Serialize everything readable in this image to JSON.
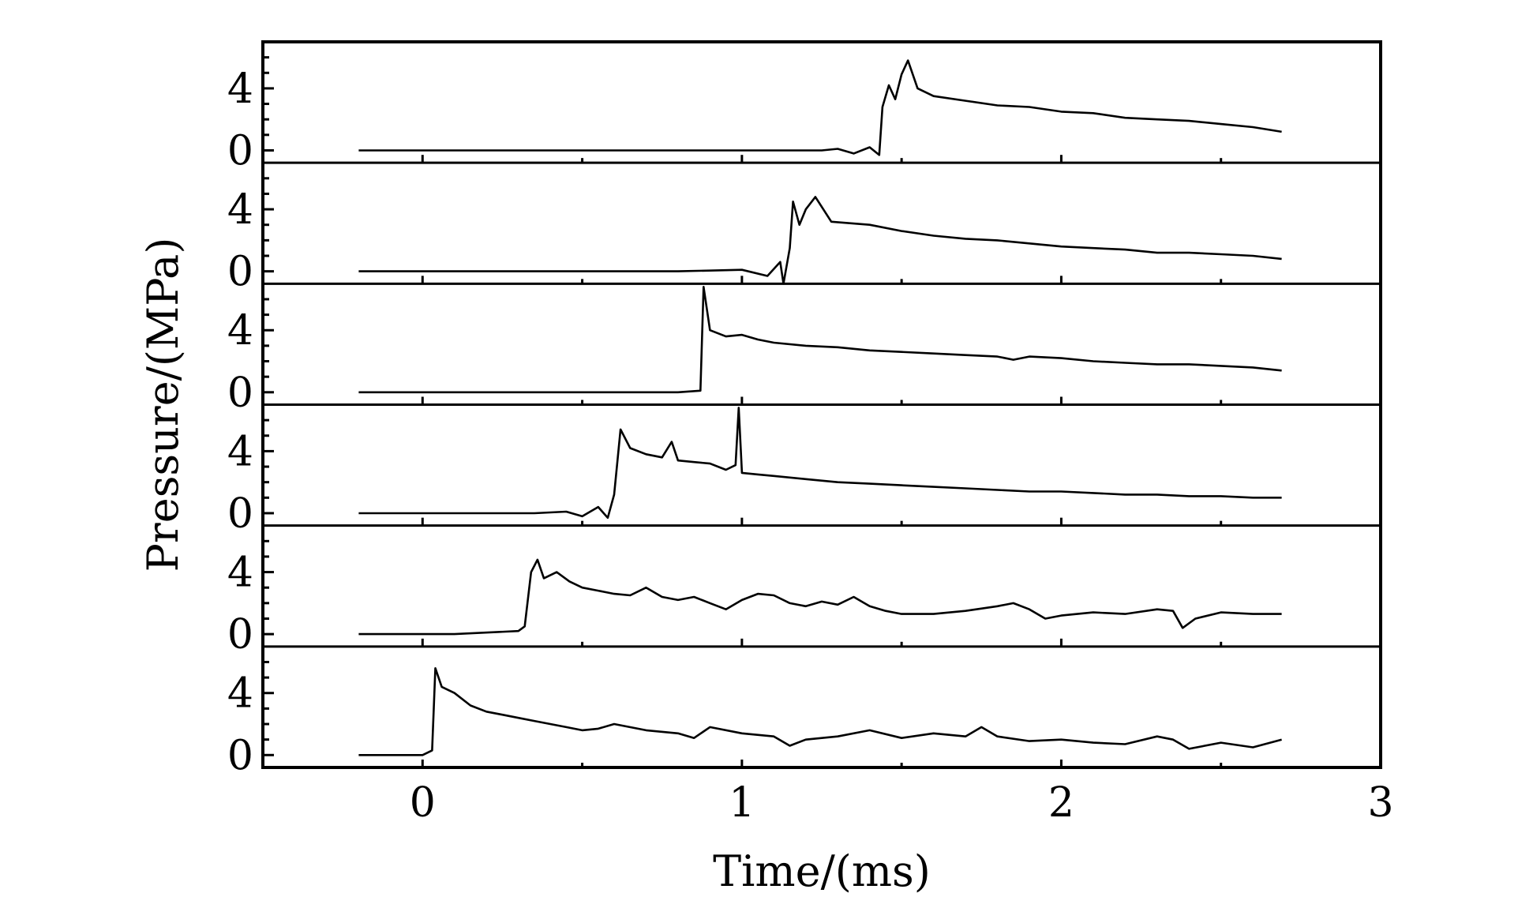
{
  "chart_data": {
    "type": "line",
    "xlabel": "Time/(ms)",
    "ylabel": "Pressure/(MPa)",
    "xlim": [
      -0.5,
      3
    ],
    "x_ticks": [
      "0",
      "1",
      "2",
      "3"
    ],
    "x_tick_values": [
      0,
      1,
      2,
      3
    ],
    "panel_ylim": [
      -0.8,
      7
    ],
    "panel_y_ticks": [
      "0",
      "4"
    ],
    "panel_y_tick_values": [
      0,
      4
    ],
    "panels_top_to_bottom": [
      {
        "points": [
          [
            -0.2,
            0
          ],
          [
            1.25,
            0
          ],
          [
            1.3,
            0.1
          ],
          [
            1.35,
            -0.2
          ],
          [
            1.4,
            0.2
          ],
          [
            1.43,
            -0.3
          ],
          [
            1.44,
            2.8
          ],
          [
            1.46,
            4.2
          ],
          [
            1.48,
            3.3
          ],
          [
            1.5,
            4.9
          ],
          [
            1.52,
            5.8
          ],
          [
            1.55,
            4.0
          ],
          [
            1.6,
            3.5
          ],
          [
            1.7,
            3.2
          ],
          [
            1.8,
            2.9
          ],
          [
            1.9,
            2.8
          ],
          [
            2.0,
            2.5
          ],
          [
            2.1,
            2.4
          ],
          [
            2.2,
            2.1
          ],
          [
            2.3,
            2.0
          ],
          [
            2.4,
            1.9
          ],
          [
            2.5,
            1.7
          ],
          [
            2.6,
            1.5
          ],
          [
            2.69,
            1.2
          ]
        ]
      },
      {
        "points": [
          [
            -0.2,
            0
          ],
          [
            0.8,
            0
          ],
          [
            1.0,
            0.1
          ],
          [
            1.08,
            -0.3
          ],
          [
            1.12,
            0.6
          ],
          [
            1.13,
            -0.8
          ],
          [
            1.15,
            1.5
          ],
          [
            1.16,
            4.5
          ],
          [
            1.18,
            3.0
          ],
          [
            1.2,
            4.0
          ],
          [
            1.23,
            4.8
          ],
          [
            1.28,
            3.2
          ],
          [
            1.4,
            3.0
          ],
          [
            1.5,
            2.6
          ],
          [
            1.6,
            2.3
          ],
          [
            1.7,
            2.1
          ],
          [
            1.8,
            2.0
          ],
          [
            1.9,
            1.8
          ],
          [
            2.0,
            1.6
          ],
          [
            2.1,
            1.5
          ],
          [
            2.2,
            1.4
          ],
          [
            2.3,
            1.2
          ],
          [
            2.4,
            1.2
          ],
          [
            2.5,
            1.1
          ],
          [
            2.6,
            1.0
          ],
          [
            2.69,
            0.8
          ]
        ]
      },
      {
        "points": [
          [
            -0.2,
            0
          ],
          [
            0.8,
            0
          ],
          [
            0.87,
            0.1
          ],
          [
            0.88,
            6.8
          ],
          [
            0.9,
            4.0
          ],
          [
            0.95,
            3.6
          ],
          [
            1.0,
            3.7
          ],
          [
            1.05,
            3.4
          ],
          [
            1.1,
            3.2
          ],
          [
            1.2,
            3.0
          ],
          [
            1.3,
            2.9
          ],
          [
            1.4,
            2.7
          ],
          [
            1.5,
            2.6
          ],
          [
            1.6,
            2.5
          ],
          [
            1.7,
            2.4
          ],
          [
            1.8,
            2.3
          ],
          [
            1.85,
            2.1
          ],
          [
            1.9,
            2.3
          ],
          [
            2.0,
            2.2
          ],
          [
            2.1,
            2.0
          ],
          [
            2.2,
            1.9
          ],
          [
            2.3,
            1.8
          ],
          [
            2.4,
            1.8
          ],
          [
            2.5,
            1.7
          ],
          [
            2.6,
            1.6
          ],
          [
            2.69,
            1.4
          ]
        ]
      },
      {
        "points": [
          [
            -0.2,
            0
          ],
          [
            0.35,
            0
          ],
          [
            0.45,
            0.1
          ],
          [
            0.5,
            -0.2
          ],
          [
            0.55,
            0.4
          ],
          [
            0.58,
            -0.3
          ],
          [
            0.6,
            1.2
          ],
          [
            0.62,
            5.4
          ],
          [
            0.65,
            4.2
          ],
          [
            0.7,
            3.8
          ],
          [
            0.75,
            3.6
          ],
          [
            0.78,
            4.6
          ],
          [
            0.8,
            3.4
          ],
          [
            0.85,
            3.3
          ],
          [
            0.9,
            3.2
          ],
          [
            0.95,
            2.8
          ],
          [
            0.98,
            3.1
          ],
          [
            0.99,
            6.8
          ],
          [
            1.0,
            2.6
          ],
          [
            1.05,
            2.5
          ],
          [
            1.1,
            2.4
          ],
          [
            1.2,
            2.2
          ],
          [
            1.3,
            2.0
          ],
          [
            1.4,
            1.9
          ],
          [
            1.5,
            1.8
          ],
          [
            1.6,
            1.7
          ],
          [
            1.7,
            1.6
          ],
          [
            1.8,
            1.5
          ],
          [
            1.9,
            1.4
          ],
          [
            2.0,
            1.4
          ],
          [
            2.1,
            1.3
          ],
          [
            2.2,
            1.2
          ],
          [
            2.3,
            1.2
          ],
          [
            2.4,
            1.1
          ],
          [
            2.5,
            1.1
          ],
          [
            2.6,
            1.0
          ],
          [
            2.69,
            1.0
          ]
        ]
      },
      {
        "points": [
          [
            -0.2,
            0
          ],
          [
            0.1,
            0
          ],
          [
            0.3,
            0.2
          ],
          [
            0.32,
            0.5
          ],
          [
            0.34,
            4.0
          ],
          [
            0.36,
            4.8
          ],
          [
            0.38,
            3.6
          ],
          [
            0.42,
            4.0
          ],
          [
            0.46,
            3.4
          ],
          [
            0.5,
            3.0
          ],
          [
            0.55,
            2.8
          ],
          [
            0.6,
            2.6
          ],
          [
            0.65,
            2.5
          ],
          [
            0.7,
            3.0
          ],
          [
            0.75,
            2.4
          ],
          [
            0.8,
            2.2
          ],
          [
            0.85,
            2.4
          ],
          [
            0.9,
            2.0
          ],
          [
            0.95,
            1.6
          ],
          [
            1.0,
            2.2
          ],
          [
            1.05,
            2.6
          ],
          [
            1.1,
            2.5
          ],
          [
            1.15,
            2.0
          ],
          [
            1.2,
            1.8
          ],
          [
            1.25,
            2.1
          ],
          [
            1.3,
            1.9
          ],
          [
            1.35,
            2.4
          ],
          [
            1.4,
            1.8
          ],
          [
            1.45,
            1.5
          ],
          [
            1.5,
            1.3
          ],
          [
            1.6,
            1.3
          ],
          [
            1.7,
            1.5
          ],
          [
            1.8,
            1.8
          ],
          [
            1.85,
            2.0
          ],
          [
            1.9,
            1.6
          ],
          [
            1.95,
            1.0
          ],
          [
            2.0,
            1.2
          ],
          [
            2.1,
            1.4
          ],
          [
            2.2,
            1.3
          ],
          [
            2.3,
            1.6
          ],
          [
            2.35,
            1.5
          ],
          [
            2.38,
            0.4
          ],
          [
            2.42,
            1.0
          ],
          [
            2.5,
            1.4
          ],
          [
            2.6,
            1.3
          ],
          [
            2.69,
            1.3
          ]
        ]
      },
      {
        "points": [
          [
            -0.2,
            0
          ],
          [
            0.0,
            0
          ],
          [
            0.03,
            0.3
          ],
          [
            0.04,
            5.6
          ],
          [
            0.06,
            4.4
          ],
          [
            0.1,
            4.0
          ],
          [
            0.15,
            3.2
          ],
          [
            0.2,
            2.8
          ],
          [
            0.25,
            2.6
          ],
          [
            0.3,
            2.4
          ],
          [
            0.35,
            2.2
          ],
          [
            0.4,
            2.0
          ],
          [
            0.45,
            1.8
          ],
          [
            0.5,
            1.6
          ],
          [
            0.55,
            1.7
          ],
          [
            0.6,
            2.0
          ],
          [
            0.7,
            1.6
          ],
          [
            0.8,
            1.4
          ],
          [
            0.85,
            1.1
          ],
          [
            0.9,
            1.8
          ],
          [
            1.0,
            1.4
          ],
          [
            1.1,
            1.2
          ],
          [
            1.15,
            0.6
          ],
          [
            1.2,
            1.0
          ],
          [
            1.3,
            1.2
          ],
          [
            1.4,
            1.6
          ],
          [
            1.5,
            1.1
          ],
          [
            1.6,
            1.4
          ],
          [
            1.7,
            1.2
          ],
          [
            1.75,
            1.8
          ],
          [
            1.8,
            1.2
          ],
          [
            1.9,
            0.9
          ],
          [
            2.0,
            1.0
          ],
          [
            2.1,
            0.8
          ],
          [
            2.2,
            0.7
          ],
          [
            2.3,
            1.2
          ],
          [
            2.35,
            1.0
          ],
          [
            2.4,
            0.4
          ],
          [
            2.5,
            0.8
          ],
          [
            2.6,
            0.5
          ],
          [
            2.69,
            1.0
          ]
        ]
      }
    ]
  }
}
